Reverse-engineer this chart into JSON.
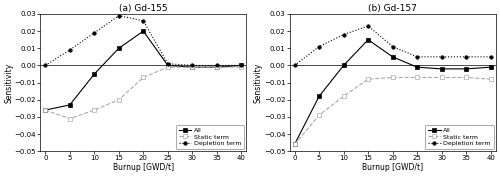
{
  "burnup": [
    0,
    5,
    10,
    15,
    20,
    25,
    30,
    35,
    40
  ],
  "gd155_all": [
    -0.026,
    -0.023,
    -0.005,
    0.01,
    0.02,
    0.0,
    -0.001,
    -0.001,
    0.0
  ],
  "gd155_static": [
    -0.026,
    -0.031,
    -0.026,
    -0.02,
    -0.007,
    -0.001,
    -0.001,
    -0.001,
    -0.001
  ],
  "gd155_depletion": [
    0.0,
    0.009,
    0.019,
    0.029,
    0.026,
    0.001,
    0.0,
    0.0,
    0.0
  ],
  "gd157_all": [
    -0.046,
    -0.018,
    0.0,
    0.015,
    0.005,
    -0.001,
    -0.002,
    -0.002,
    -0.001
  ],
  "gd157_static": [
    -0.046,
    -0.029,
    -0.018,
    -0.008,
    -0.007,
    -0.007,
    -0.007,
    -0.007,
    -0.008
  ],
  "gd157_depletion": [
    0.0,
    0.011,
    0.018,
    0.023,
    0.011,
    0.005,
    0.005,
    0.005,
    0.005
  ],
  "title_a": "(a) Gd-155",
  "title_b": "(b) Gd-157",
  "xlabel": "Burnup [GWD/t]",
  "ylabel": "Sensitivity",
  "ylim": [
    -0.05,
    0.03
  ],
  "yticks": [
    -0.05,
    -0.04,
    -0.03,
    -0.02,
    -0.01,
    0.0,
    0.01,
    0.02,
    0.03
  ],
  "xticks": [
    0,
    5,
    10,
    15,
    20,
    25,
    30,
    35,
    40
  ],
  "color_all": "#000000",
  "color_static": "#aaaaaa",
  "color_depletion": "#000000",
  "legend_labels": [
    "All",
    "Static term",
    "Depletion term"
  ]
}
